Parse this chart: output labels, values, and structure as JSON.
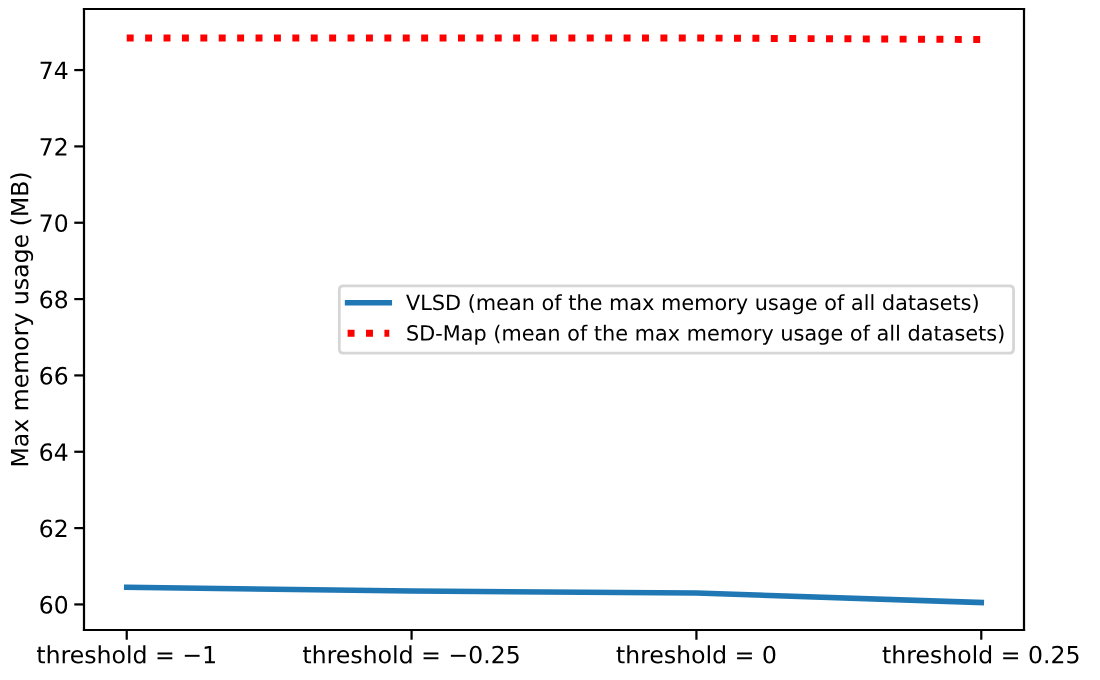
{
  "chart_data": {
    "type": "line",
    "ylabel": "Max memory usage (MB)",
    "categories": [
      "threshold = −1",
      "threshold = −0.25",
      "threshold = 0",
      "threshold = 0.25"
    ],
    "series": [
      {
        "name": "VLSD (mean of the max memory usage of all datasets)",
        "color": "#1f77b4",
        "values": [
          60.45,
          60.35,
          60.3,
          60.05
        ],
        "line_style": "solid"
      },
      {
        "name": "SD-Map (mean of the max memory usage of all datasets)",
        "color": "#ff0000",
        "values": [
          74.84,
          74.84,
          74.84,
          74.8
        ],
        "line_style": "dotted"
      }
    ],
    "ylim": [
      59.33,
      75.6
    ],
    "yticks": [
      60,
      62,
      64,
      66,
      68,
      70,
      72,
      74
    ],
    "grid": false,
    "legend": "center right",
    "marker": "none"
  }
}
